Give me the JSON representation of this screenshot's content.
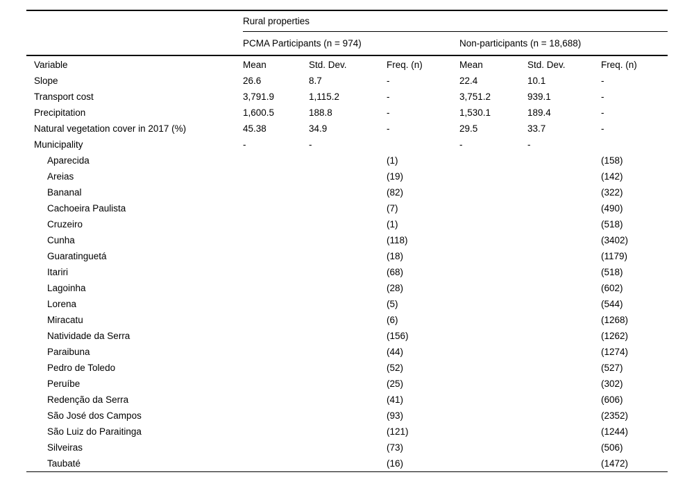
{
  "table": {
    "group_header": "Rural properties",
    "col_groups": [
      {
        "label": "PCMA Participants (n = 974)"
      },
      {
        "label": "Non-participants (n = 18,688)"
      }
    ],
    "columns": [
      "Variable",
      "Mean",
      "Std. Dev.",
      "Freq. (n)",
      "Mean",
      "Std. Dev.",
      "Freq. (n)"
    ],
    "rows": [
      {
        "label": "Slope",
        "indent": false,
        "values": [
          "26.6",
          "8.7",
          "-",
          "22.4",
          "10.1",
          "-"
        ]
      },
      {
        "label": "Transport cost",
        "indent": false,
        "values": [
          "3,791.9",
          "1,115.2",
          "-",
          "3,751.2",
          "939.1",
          "-"
        ]
      },
      {
        "label": "Precipitation",
        "indent": false,
        "values": [
          "1,600.5",
          "188.8",
          "-",
          "1,530.1",
          "189.4",
          "-"
        ]
      },
      {
        "label": "Natural vegetation cover in 2017 (%)",
        "indent": false,
        "values": [
          "45.38",
          "34.9",
          "-",
          "29.5",
          "33.7",
          "-"
        ]
      },
      {
        "label": "Municipality",
        "indent": false,
        "values": [
          "-",
          "-",
          "",
          "-",
          "-",
          ""
        ]
      },
      {
        "label": "Aparecida",
        "indent": true,
        "values": [
          "",
          "",
          "(1)",
          "",
          "",
          "(158)"
        ]
      },
      {
        "label": "Areias",
        "indent": true,
        "values": [
          "",
          "",
          "(19)",
          "",
          "",
          "(142)"
        ]
      },
      {
        "label": "Bananal",
        "indent": true,
        "values": [
          "",
          "",
          "(82)",
          "",
          "",
          "(322)"
        ]
      },
      {
        "label": "Cachoeira Paulista",
        "indent": true,
        "values": [
          "",
          "",
          "(7)",
          "",
          "",
          "(490)"
        ]
      },
      {
        "label": "Cruzeiro",
        "indent": true,
        "values": [
          "",
          "",
          "(1)",
          "",
          "",
          "(518)"
        ]
      },
      {
        "label": "Cunha",
        "indent": true,
        "values": [
          "",
          "",
          "(118)",
          "",
          "",
          "(3402)"
        ]
      },
      {
        "label": "Guaratinguetá",
        "indent": true,
        "values": [
          "",
          "",
          "(18)",
          "",
          "",
          "(1179)"
        ]
      },
      {
        "label": "Itariri",
        "indent": true,
        "values": [
          "",
          "",
          "(68)",
          "",
          "",
          "(518)"
        ]
      },
      {
        "label": "Lagoinha",
        "indent": true,
        "values": [
          "",
          "",
          "(28)",
          "",
          "",
          "(602)"
        ]
      },
      {
        "label": "Lorena",
        "indent": true,
        "values": [
          "",
          "",
          "(5)",
          "",
          "",
          "(544)"
        ]
      },
      {
        "label": "Miracatu",
        "indent": true,
        "values": [
          "",
          "",
          "(6)",
          "",
          "",
          "(1268)"
        ]
      },
      {
        "label": "Natividade da Serra",
        "indent": true,
        "values": [
          "",
          "",
          "(156)",
          "",
          "",
          "(1262)"
        ]
      },
      {
        "label": "Paraibuna",
        "indent": true,
        "values": [
          "",
          "",
          "(44)",
          "",
          "",
          "(1274)"
        ]
      },
      {
        "label": "Pedro de Toledo",
        "indent": true,
        "values": [
          "",
          "",
          "(52)",
          "",
          "",
          "(527)"
        ]
      },
      {
        "label": "Peruíbe",
        "indent": true,
        "values": [
          "",
          "",
          "(25)",
          "",
          "",
          "(302)"
        ]
      },
      {
        "label": "Redenção da Serra",
        "indent": true,
        "values": [
          "",
          "",
          "(41)",
          "",
          "",
          "(606)"
        ]
      },
      {
        "label": "São José dos Campos",
        "indent": true,
        "values": [
          "",
          "",
          "(93)",
          "",
          "",
          "(2352)"
        ]
      },
      {
        "label": "São Luiz do Paraitinga",
        "indent": true,
        "values": [
          "",
          "",
          "(121)",
          "",
          "",
          "(1244)"
        ]
      },
      {
        "label": "Silveiras",
        "indent": true,
        "values": [
          "",
          "",
          "(73)",
          "",
          "",
          "(506)"
        ]
      },
      {
        "label": "Taubaté",
        "indent": true,
        "values": [
          "",
          "",
          "(16)",
          "",
          "",
          "(1472)"
        ]
      }
    ]
  },
  "colors": {
    "text": "#000000",
    "background": "#ffffff",
    "rule": "#000000"
  }
}
